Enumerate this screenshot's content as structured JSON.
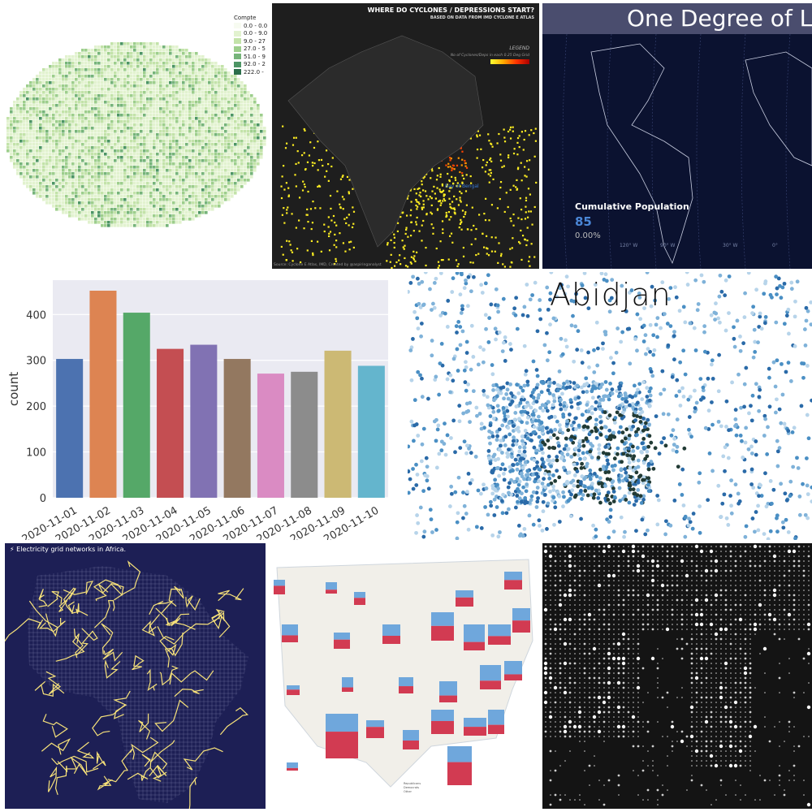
{
  "paris": {
    "legend_title": "Compte",
    "legend_items": [
      {
        "label": "0.0 - 0.0",
        "color": "#f7fbf1"
      },
      {
        "label": "0.0 - 9.0",
        "color": "#e2f2cf"
      },
      {
        "label": "9.0 - 27",
        "color": "#c3e3a9"
      },
      {
        "label": "27.0 - 5",
        "color": "#9dce8c"
      },
      {
        "label": "51.0 - 9",
        "color": "#76b47a"
      },
      {
        "label": "92.0 - 2",
        "color": "#4d9565"
      },
      {
        "label": "222.0 -",
        "color": "#2a6e4a"
      }
    ]
  },
  "cyclones": {
    "title": "WHERE DO CYCLONES / DEPRESSIONS START?",
    "subtitle": "BASED ON DATA FROM IMD CYCLONE E ATLAS",
    "legend_title": "LEGEND",
    "legend_text": "No of Cyclones/Deps in each 0.25 Deg Grid",
    "bay_label": "Bay of Bengal",
    "footer": "Source: Cyclone E Atlas, IMD, Created by @aspiringanalyst"
  },
  "one_degree": {
    "title": "One Degree of L",
    "metric_label": "Cumulative Population",
    "metric_value": "85",
    "metric_pct": "0.00%",
    "lon_labels": [
      "120° W",
      "90° W",
      "30° W",
      "0°"
    ]
  },
  "bar_chart": {
    "ylabel": "count",
    "yticks": [
      "0",
      "100",
      "200",
      "300",
      "400"
    ]
  },
  "chart_data": {
    "type": "bar",
    "categories": [
      "2020-11-01",
      "2020-11-02",
      "2020-11-03",
      "2020-11-04",
      "2020-11-05",
      "2020-11-06",
      "2020-11-07",
      "2020-11-08",
      "2020-11-09",
      "2020-11-10"
    ],
    "values": [
      303,
      452,
      404,
      325,
      334,
      303,
      271,
      275,
      321,
      288
    ],
    "colors": [
      "#4c72b0",
      "#dd8452",
      "#55a868",
      "#c44e52",
      "#8172b3",
      "#937860",
      "#da8bc3",
      "#8c8c8c",
      "#ccb974",
      "#64b5cd"
    ],
    "xlabel": "",
    "ylabel": "count",
    "ylim": [
      0,
      475
    ],
    "grid": true
  },
  "abidjan": {
    "title": "Abidjan"
  },
  "africa": {
    "title": "⚡ Electricity grid networks in Africa."
  },
  "usmap": {
    "legend": [
      "Republicans",
      "Democrats",
      "Other"
    ]
  }
}
